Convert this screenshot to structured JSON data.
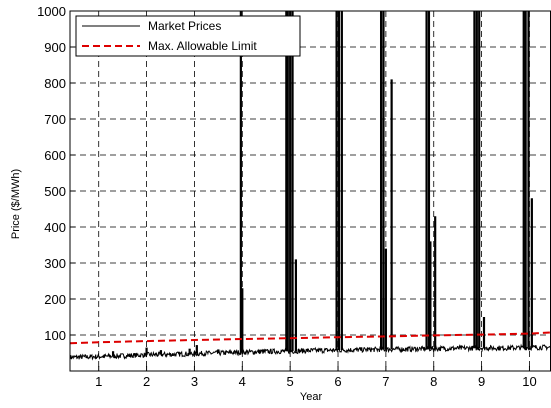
{
  "chart_data": {
    "type": "line",
    "title": "",
    "xlabel": "Year",
    "ylabel": "Price ($/MWh)",
    "xlim": [
      0.4,
      10.45
    ],
    "ylim": [
      0,
      1000
    ],
    "xticks": [
      1,
      2,
      3,
      4,
      5,
      6,
      7,
      8,
      9,
      10
    ],
    "yticks": [
      100,
      200,
      300,
      400,
      500,
      600,
      700,
      800,
      900,
      1000
    ],
    "grid": true,
    "legend_position": "top-left",
    "series": [
      {
        "name": "Market Prices",
        "color": "#000000",
        "style": "solid",
        "baseline": {
          "x": [
            0.4,
            1.0,
            1.5,
            2.0,
            2.5,
            3.0,
            3.5,
            4.0,
            4.5,
            5.0,
            5.5,
            6.0,
            6.5,
            7.0,
            7.5,
            8.0,
            8.5,
            9.0,
            9.5,
            10.0,
            10.45
          ],
          "y": [
            38,
            40,
            42,
            45,
            46,
            48,
            50,
            52,
            54,
            55,
            57,
            58,
            59,
            60,
            61,
            62,
            63,
            64,
            64,
            65,
            66
          ]
        },
        "spikes": [
          {
            "x": 1.3,
            "y": 55
          },
          {
            "x": 2.0,
            "y": 65
          },
          {
            "x": 2.3,
            "y": 58
          },
          {
            "x": 2.9,
            "y": 62
          },
          {
            "x": 3.05,
            "y": 72
          },
          {
            "x": 3.5,
            "y": 60
          },
          {
            "x": 3.97,
            "y": 1000
          },
          {
            "x": 4.0,
            "y": 230
          },
          {
            "x": 4.92,
            "y": 1000
          },
          {
            "x": 4.95,
            "y": 1000
          },
          {
            "x": 5.0,
            "y": 1000
          },
          {
            "x": 5.05,
            "y": 1000
          },
          {
            "x": 5.12,
            "y": 310
          },
          {
            "x": 5.97,
            "y": 1000
          },
          {
            "x": 6.02,
            "y": 1000
          },
          {
            "x": 6.08,
            "y": 1000
          },
          {
            "x": 6.9,
            "y": 1000
          },
          {
            "x": 6.95,
            "y": 1000
          },
          {
            "x": 7.0,
            "y": 340
          },
          {
            "x": 7.12,
            "y": 810
          },
          {
            "x": 7.85,
            "y": 1000
          },
          {
            "x": 7.9,
            "y": 1000
          },
          {
            "x": 7.93,
            "y": 360
          },
          {
            "x": 8.03,
            "y": 430
          },
          {
            "x": 8.85,
            "y": 1000
          },
          {
            "x": 8.9,
            "y": 1000
          },
          {
            "x": 8.95,
            "y": 1000
          },
          {
            "x": 9.05,
            "y": 150
          },
          {
            "x": 9.88,
            "y": 1000
          },
          {
            "x": 9.92,
            "y": 1000
          },
          {
            "x": 9.98,
            "y": 1000
          },
          {
            "x": 10.05,
            "y": 480
          }
        ]
      },
      {
        "name": "Max. Allowable Limit",
        "color": "#dd0000",
        "style": "dashed",
        "x": [
          0.4,
          1.0,
          2.0,
          3.0,
          4.0,
          5.0,
          6.0,
          7.0,
          8.0,
          9.0,
          10.0,
          10.45
        ],
        "y": [
          77,
          80,
          83,
          86,
          89,
          91,
          94,
          96,
          99,
          101,
          104,
          107
        ]
      }
    ]
  }
}
